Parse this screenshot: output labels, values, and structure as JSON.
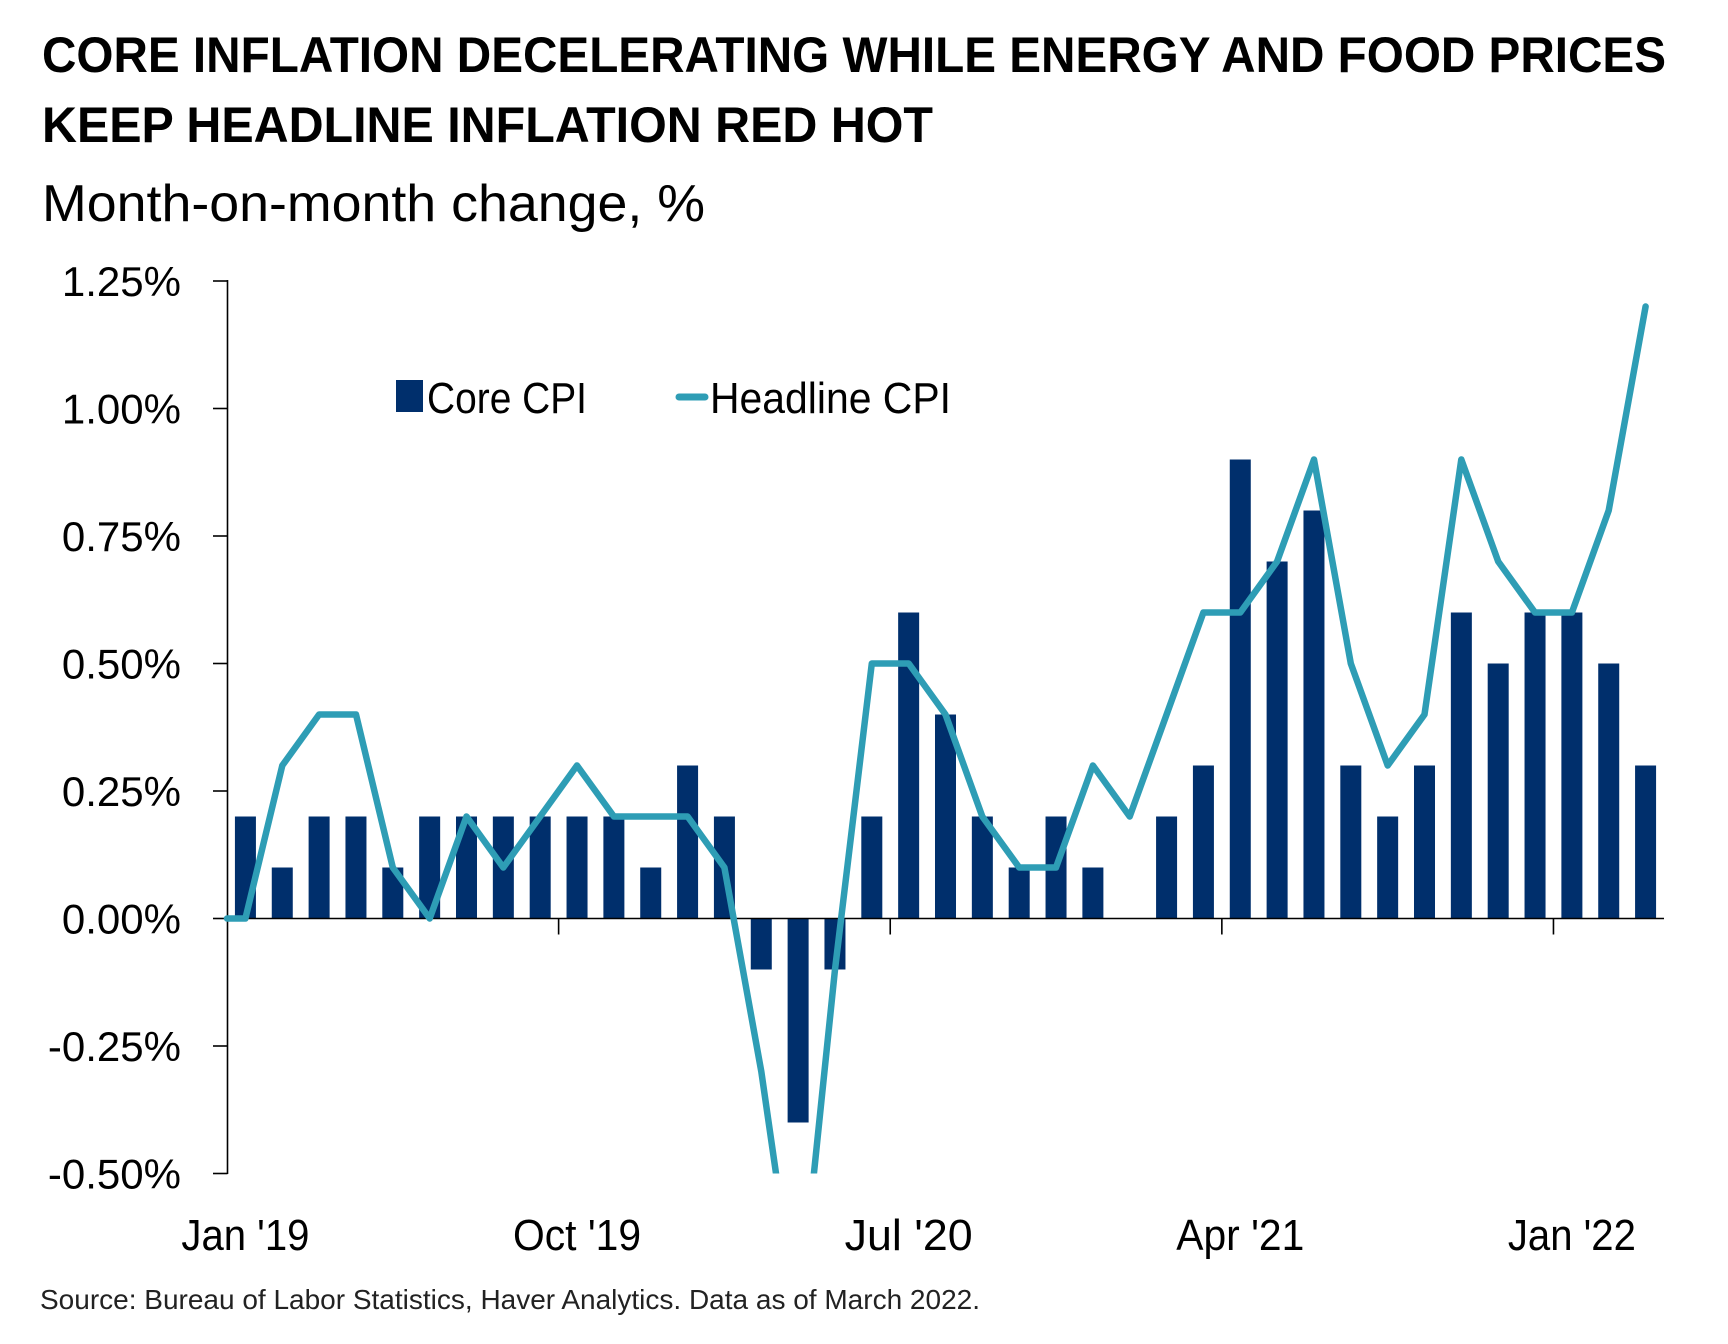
{
  "chart_data": {
    "type": "bar",
    "title_lines": [
      "CORE INFLATION DECELERATING WHILE ENERGY AND FOOD PRICES",
      "KEEP HEADLINE INFLATION RED HOT"
    ],
    "subtitle": "Month-on-month change, %",
    "xlabel": "",
    "ylabel": "",
    "ylim": [
      -0.5,
      1.25
    ],
    "yticks": [
      -0.5,
      -0.25,
      0,
      0.25,
      0.5,
      0.75,
      1.0,
      1.25
    ],
    "ytick_labels": [
      "-0.50%",
      "-0.25%",
      "0.00%",
      "0.25%",
      "0.50%",
      "0.75%",
      "1.00%",
      "1.25%"
    ],
    "xtick_labels": [
      {
        "label": "Jan '19",
        "category_index": 0
      },
      {
        "label": "Oct '19",
        "category_index": 9
      },
      {
        "label": "Jul '20",
        "category_index": 18
      },
      {
        "label": "Apr '21",
        "category_index": 27
      },
      {
        "label": "Jan '22",
        "category_index": 36
      }
    ],
    "grid": false,
    "legend": {
      "placement": "top-left",
      "entries": [
        {
          "name": "Core CPI",
          "marker": "square"
        },
        {
          "name": "Headline CPI",
          "marker": "line"
        }
      ]
    },
    "categories": [
      "Jan 2019",
      "Feb 2019",
      "Mar 2019",
      "Apr 2019",
      "May 2019",
      "Jun 2019",
      "Jul 2019",
      "Aug 2019",
      "Sep 2019",
      "Oct 2019",
      "Nov 2019",
      "Dec 2019",
      "Jan 2020",
      "Feb 2020",
      "Mar 2020",
      "Apr 2020",
      "May 2020",
      "Jun 2020",
      "Jul 2020",
      "Aug 2020",
      "Sep 2020",
      "Oct 2020",
      "Nov 2020",
      "Dec 2020",
      "Jan 2021",
      "Feb 2021",
      "Mar 2021",
      "Apr 2021",
      "May 2021",
      "Jun 2021",
      "Jul 2021",
      "Aug 2021",
      "Sep 2021",
      "Oct 2021",
      "Nov 2021",
      "Dec 2021",
      "Jan 2022",
      "Feb 2022",
      "Mar 2022"
    ],
    "series": [
      {
        "name": "Core CPI",
        "type": "bar",
        "color": "#002F6C",
        "values": [
          0.2,
          0.1,
          0.2,
          0.2,
          0.1,
          0.2,
          0.2,
          0.2,
          0.2,
          0.2,
          0.2,
          0.1,
          0.3,
          0.2,
          -0.1,
          -0.4,
          -0.1,
          0.2,
          0.6,
          0.4,
          0.2,
          0.1,
          0.2,
          0.1,
          0.0,
          0.2,
          0.3,
          0.9,
          0.7,
          0.8,
          0.3,
          0.2,
          0.3,
          0.6,
          0.5,
          0.6,
          0.6,
          0.5,
          0.3
        ]
      },
      {
        "name": "Headline CPI",
        "type": "line",
        "color": "#2E9DB5",
        "values": [
          0.0,
          0.3,
          0.4,
          0.4,
          0.1,
          0.0,
          0.2,
          0.1,
          0.2,
          0.3,
          0.2,
          0.2,
          0.2,
          0.1,
          -0.3,
          -0.8,
          -0.1,
          0.5,
          0.5,
          0.4,
          0.2,
          0.1,
          0.1,
          0.3,
          0.2,
          0.4,
          0.6,
          0.6,
          0.7,
          0.9,
          0.5,
          0.3,
          0.4,
          0.9,
          0.7,
          0.6,
          0.6,
          0.8,
          1.2
        ]
      }
    ],
    "source": "Source: Bureau of Labor Statistics, Haver Analytics. Data as of March 2022."
  }
}
